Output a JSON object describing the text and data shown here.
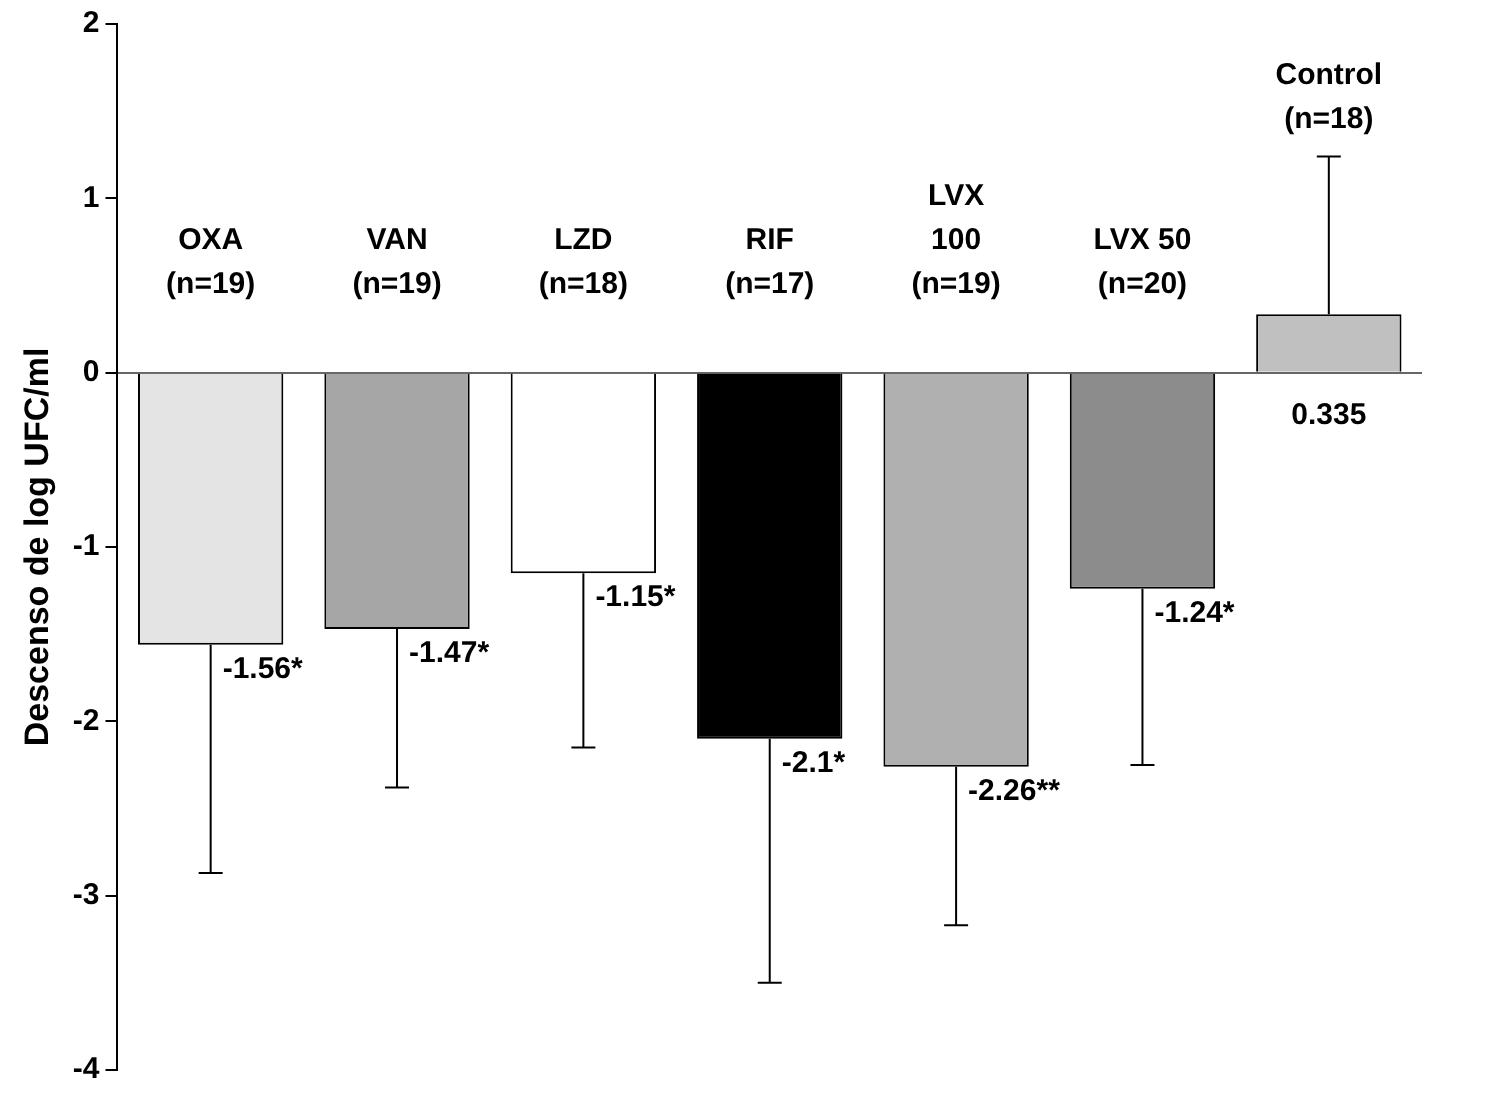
{
  "chart_data": {
    "type": "bar",
    "ylabel": "Descenso de log UFC/ml",
    "categories": [
      "OXA\n(n=19)",
      "VAN\n(n=19)",
      "LZD\n(n=18)",
      "RIF\n(n=17)",
      "LVX\n100\n(n=19)",
      "LVX 50\n(n=20)",
      "Control\n(n=18)"
    ],
    "values": [
      -1.56,
      -1.47,
      -1.15,
      -2.1,
      -2.26,
      -1.24,
      0.335
    ],
    "colors": [
      "#e4e4e4",
      "#a6a6a6",
      "#ffffff",
      "#000000",
      "#b0b0b0",
      "#8c8c8c",
      "#c0c0c0"
    ],
    "errors": [
      [
        -2.87,
        -1.56
      ],
      [
        -2.38,
        -1.47
      ],
      [
        -2.15,
        -1.15
      ],
      [
        -3.5,
        -2.1
      ],
      [
        -3.17,
        -2.26
      ],
      [
        -2.25,
        -1.24
      ],
      [
        0.335,
        1.24
      ]
    ],
    "value_labels": [
      "-1.56*",
      "-1.47*",
      "-1.15*",
      "-2.1*",
      "-2.26**",
      "-1.24*",
      "0.335"
    ],
    "ylim": [
      -4,
      2
    ],
    "yticks": [
      -4,
      -3,
      -2,
      -1,
      0,
      1,
      2
    ],
    "grid": false,
    "legend": false
  }
}
